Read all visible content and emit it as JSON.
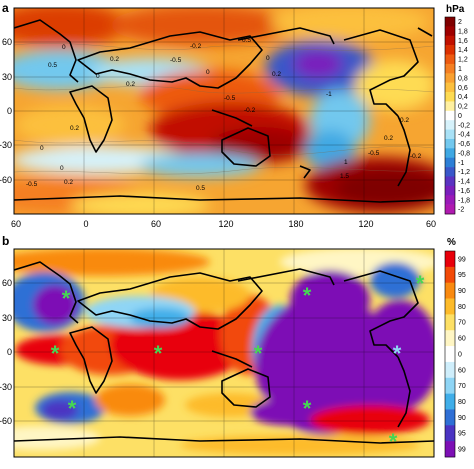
{
  "figure": {
    "panels": [
      {
        "letter": "a",
        "unit": "hPa",
        "x_ticks": [
          "60",
          "0",
          "60",
          "120",
          "180",
          "120",
          "60"
        ],
        "y_ticks": [
          "60",
          "30",
          "0",
          "-30",
          "-60"
        ],
        "colorbar_ticks": [
          "2",
          "1,8",
          "1,6",
          "1,4",
          "1,2",
          "1",
          "0,8",
          "0,6",
          "0,4",
          "0,2",
          "0",
          "-0,2",
          "-0,4",
          "-0,6",
          "-0,8",
          "-1",
          "-1,2",
          "-1,4",
          "-1,6",
          "-1,8",
          "-2"
        ],
        "colorbar_colors": [
          "#7f0000",
          "#9e0000",
          "#c11100",
          "#dc3000",
          "#ed5a10",
          "#f57f22",
          "#f9a030",
          "#fcc03e",
          "#fedb52",
          "#fff0a0",
          "#ffffff",
          "#d6f2fb",
          "#a8e1f6",
          "#72c8ee",
          "#3fa8e3",
          "#2d7fd6",
          "#3957c9",
          "#5a33c1",
          "#7a1fbc",
          "#9a1ab8",
          "#b01ab0"
        ],
        "contour_labels": [
          "0",
          "0.5",
          "0.2",
          "0",
          "0.2",
          "-0.5",
          "-0.2",
          "0.5",
          "0",
          "-0.5",
          "0.2",
          "-0.2",
          "0",
          "0.2",
          "0",
          "0",
          "-0.5",
          "0.5",
          "0.2",
          "1",
          "1.5",
          "-1",
          "0.2",
          "-0.5",
          "-0.2",
          "0.2"
        ]
      },
      {
        "letter": "b",
        "unit": "%",
        "y_ticks": [
          "60",
          "30",
          "0",
          "-30",
          "-60"
        ],
        "colorbar_ticks": [
          "99",
          "95",
          "90",
          "80",
          "70",
          "60",
          "0",
          "60",
          "70",
          "80",
          "90",
          "95",
          "99"
        ],
        "colorbar_colors": [
          "#e8000b",
          "#f24a08",
          "#f98a10",
          "#fdbb2a",
          "#fde065",
          "#fff6c4",
          "#ffffff",
          "#cfeefb",
          "#8fd5f5",
          "#40aee9",
          "#2f6fd5",
          "#4b34c2",
          "#7d0fb5"
        ]
      }
    ]
  }
}
